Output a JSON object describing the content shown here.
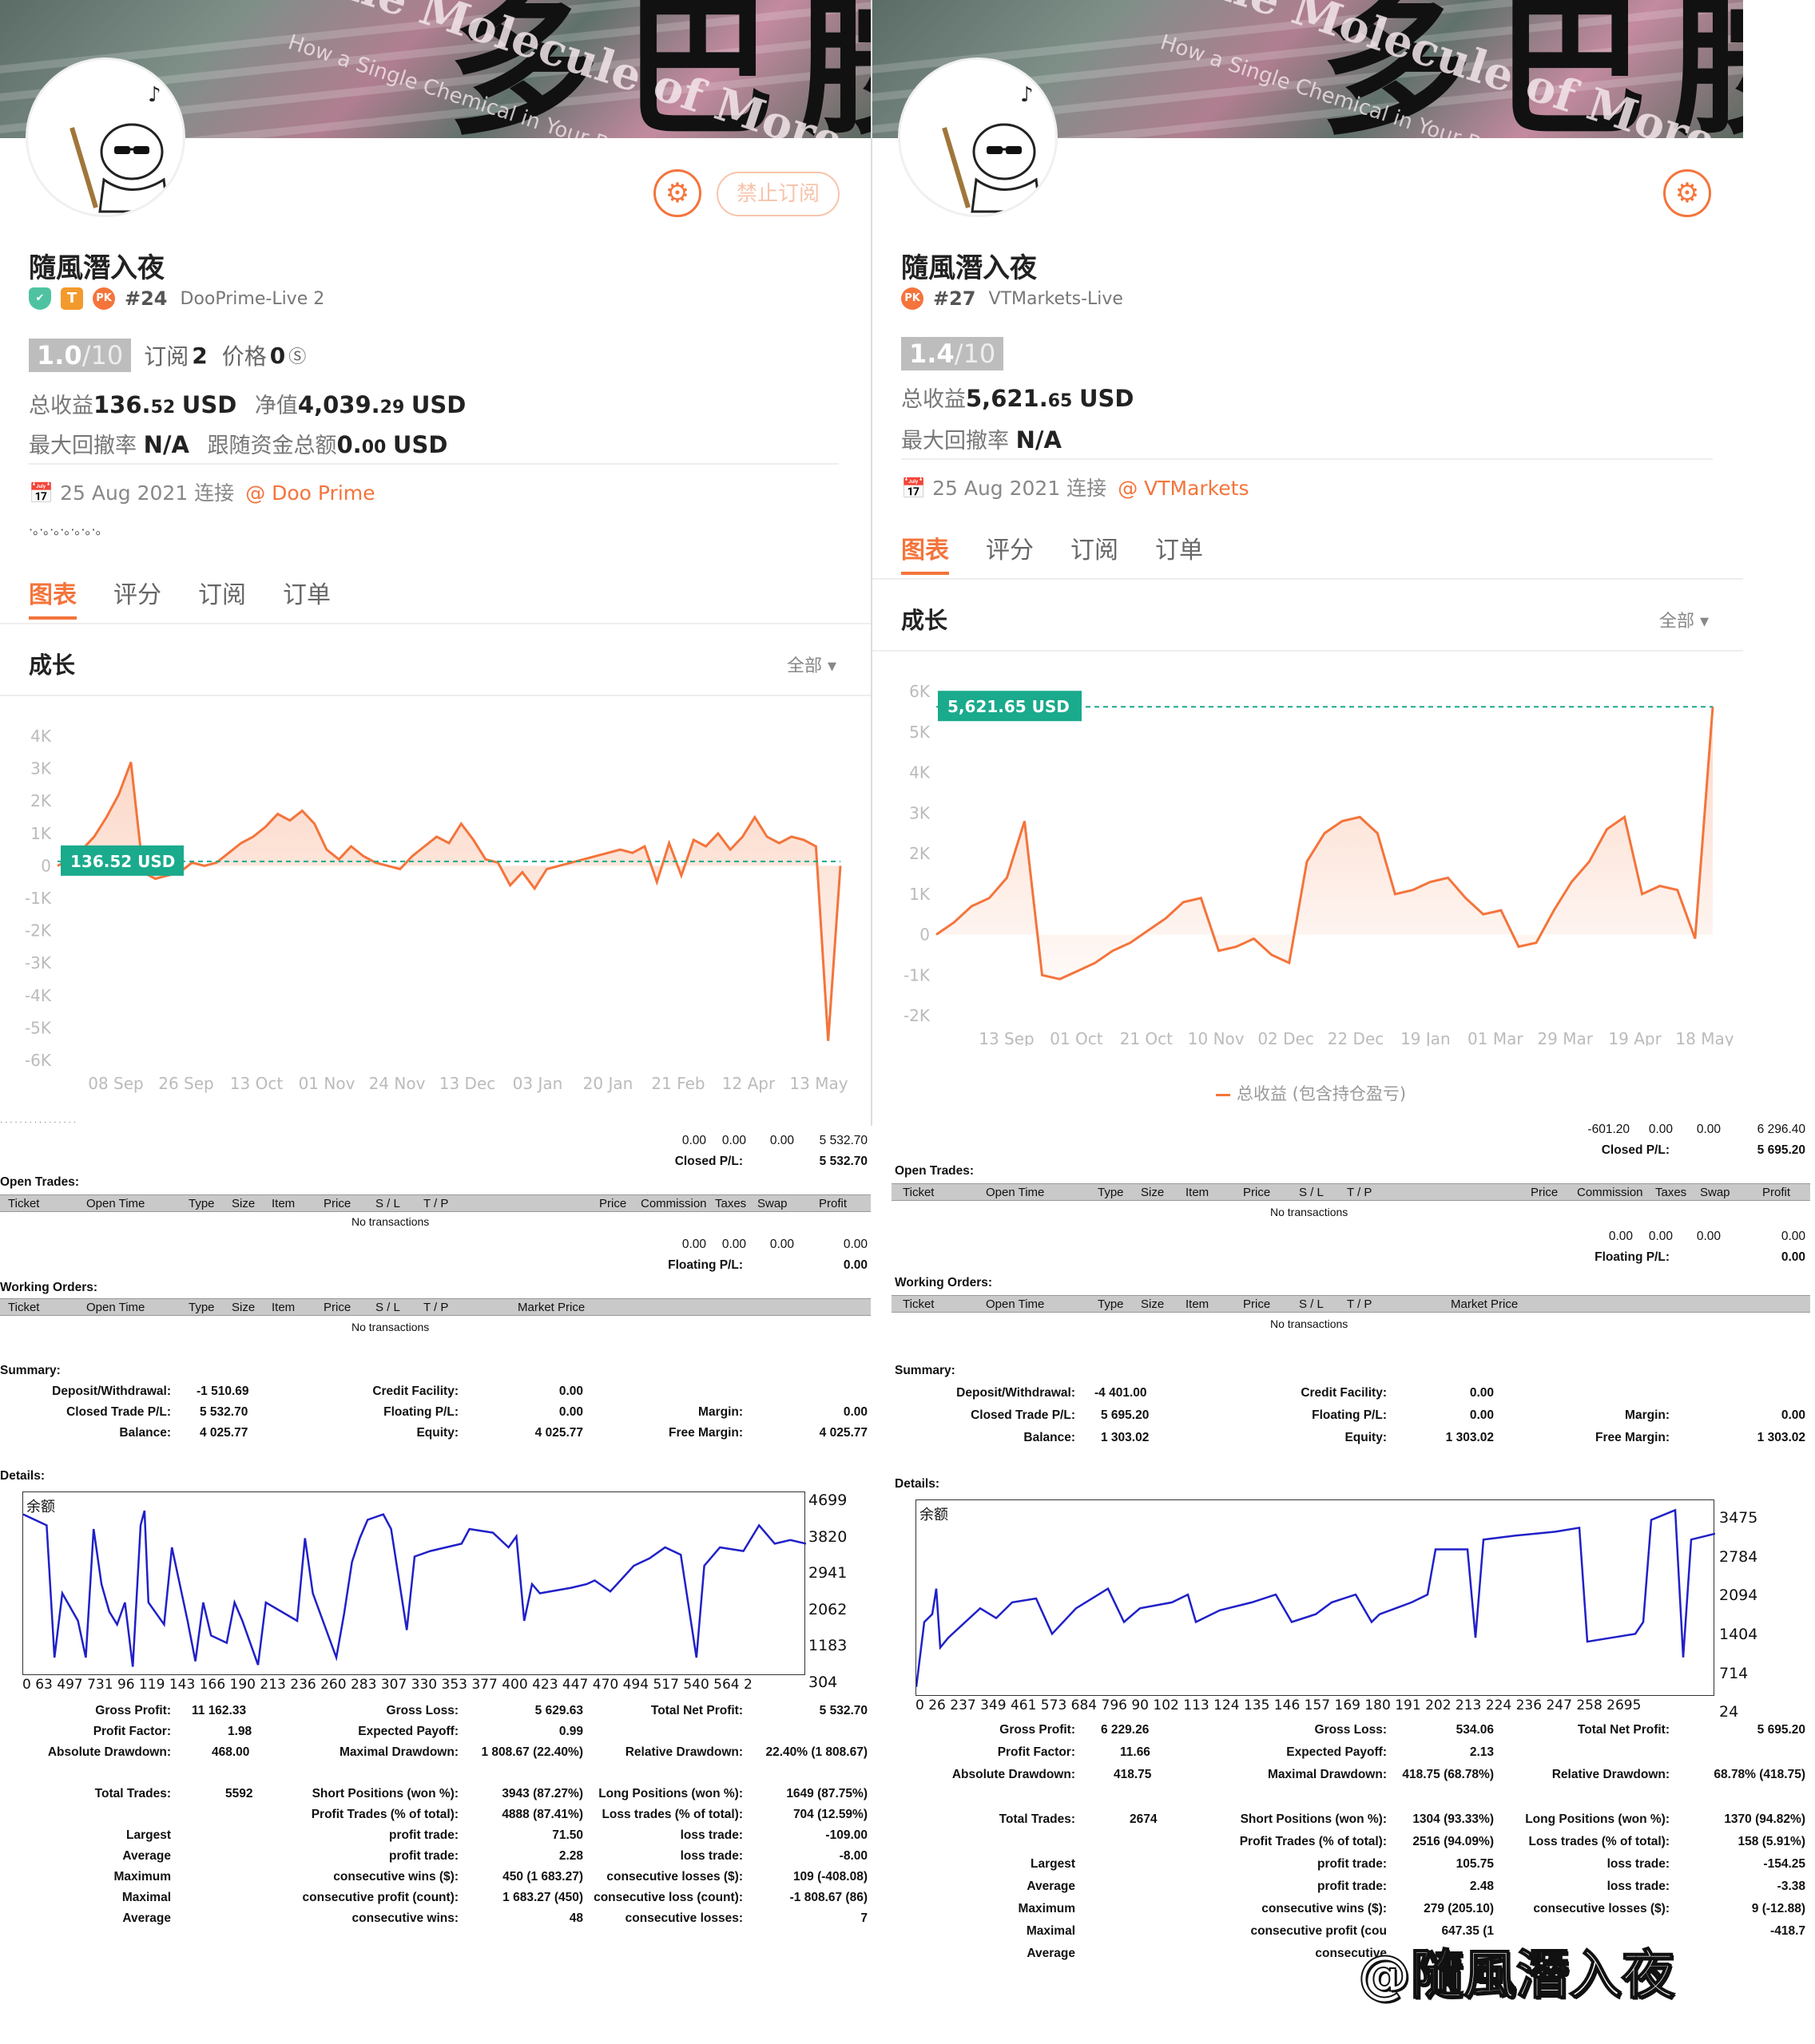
{
  "left": {
    "banner_text": "多巴胺",
    "banner_en": "The Molecule of More",
    "banner_en2": "How a Single Chemical in Your Brain",
    "stop_button": "禁止订阅",
    "name": "隨風潛入夜",
    "badge_t": "T",
    "badge_pk": "PK",
    "rank": "#24",
    "server": "DooPrime-Live 2",
    "score": "1.0",
    "score_max": "/10",
    "subs_label": "订阅",
    "subs": "2",
    "price_label": "价格",
    "price": "0",
    "profit_label": "总收益",
    "profit_int": "136.",
    "profit_dec": "52",
    "profit_unit": "USD",
    "equity_label": "净值",
    "equity_int": "4,039.",
    "equity_dec": "29",
    "equity_unit": "USD",
    "dd_label": "最大回撤率",
    "dd": "N/A",
    "follow_label": "跟随资金总额",
    "follow_int": "0.",
    "follow_dec": "00",
    "follow_unit": "USD",
    "date": "25 Aug 2021 连接",
    "broker": "@ Doo Prime",
    "dots": "·。·。·。·。·。·。·。",
    "tabs": [
      "图表",
      "评分",
      "订阅",
      "订单"
    ],
    "section": "成长",
    "filter": "全部 ▾"
  },
  "right": {
    "name": "隨風潛入夜",
    "badge_pk": "PK",
    "rank": "#27",
    "server": "VTMarkets-Live",
    "score": "1.4",
    "score_max": "/10",
    "profit_label": "总收益",
    "profit_int": "5,621.",
    "profit_dec": "65",
    "profit_unit": "USD",
    "dd_label": "最大回撤率",
    "dd": "N/A",
    "date": "25 Aug 2021 连接",
    "broker": "@ VTMarkets",
    "tabs": [
      "图表",
      "评分",
      "订阅",
      "订单"
    ],
    "section": "成长",
    "filter": "全部 ▾",
    "legend": "总收益 (包含持仓盈亏)"
  },
  "chart_data": [
    {
      "type": "area",
      "y_ticks": [
        "4K",
        "3K",
        "2K",
        "1K",
        "0",
        "-1K",
        "-2K",
        "-3K",
        "-4K",
        "-5K",
        "-6K"
      ],
      "x_ticks": [
        "08 Sep",
        "26 Sep",
        "13 Oct",
        "01 Nov",
        "24 Nov",
        "13 Dec",
        "03 Jan",
        "20 Jan",
        "21 Feb",
        "12 Apr",
        "13 May"
      ],
      "ylim": [
        -6000,
        4000
      ],
      "current_label": "136.52 USD",
      "current": 136.52,
      "series": [
        {
          "values": [
            0,
            200,
            500,
            900,
            1500,
            2200,
            3200,
            -200,
            -400,
            -300,
            -200,
            100,
            0,
            100,
            400,
            700,
            900,
            1200,
            1600,
            1400,
            1700,
            1300,
            500,
            200,
            600,
            300,
            100,
            0,
            -100,
            300,
            600,
            900,
            700,
            1300,
            800,
            200,
            100,
            -600,
            -200,
            -700,
            -100,
            0,
            100,
            200,
            300,
            400,
            500,
            400,
            600,
            -500,
            700,
            -300,
            800,
            600,
            1000,
            500,
            900,
            1500,
            900,
            700,
            900,
            800,
            600,
            -5400,
            0
          ]
        }
      ]
    },
    {
      "type": "area",
      "y_ticks": [
        "6K",
        "5K",
        "4K",
        "3K",
        "2K",
        "1K",
        "0",
        "-1K",
        "-2K"
      ],
      "x_ticks": [
        "13 Sep",
        "01 Oct",
        "21 Oct",
        "10 Nov",
        "02 Dec",
        "22 Dec",
        "19 Jan",
        "01 Mar",
        "29 Mar",
        "19 Apr",
        "18 May"
      ],
      "ylim": [
        -2000,
        6000
      ],
      "current_label": "5,621.65 USD",
      "current": 5621.65,
      "series": [
        {
          "name": "总收益 (包含持仓盈亏)",
          "values": [
            0,
            300,
            700,
            900,
            1400,
            2800,
            -1000,
            -1100,
            -900,
            -700,
            -400,
            -200,
            100,
            400,
            800,
            900,
            -400,
            -300,
            -100,
            -500,
            -700,
            1800,
            2500,
            2800,
            2900,
            2500,
            1000,
            1100,
            1300,
            1400,
            900,
            500,
            600,
            -300,
            -200,
            600,
            1300,
            1800,
            2600,
            2900,
            1000,
            1200,
            1100,
            -100,
            5621.65
          ]
        }
      ]
    }
  ],
  "reportL": {
    "top1": "· · · · · · · · · · · · · · · ·",
    "c1": "0.00",
    "c2": "0.00",
    "c3": "0.00",
    "c4": "5 532.70",
    "closed_label": "Closed P/L:",
    "closed": "5 532.70",
    "open_title": "Open Trades:",
    "hdr": [
      "Ticket",
      "Open Time",
      "Type",
      "Size",
      "Item",
      "Price",
      "S / L",
      "T / P",
      "Price",
      "Commission",
      "Taxes",
      "Swap",
      "Profit"
    ],
    "no_tx": "No transactions",
    "f1": "0.00",
    "f2": "0.00",
    "f3": "0.00",
    "f4": "0.00",
    "floating_label": "Floating P/L:",
    "floating": "0.00",
    "work_title": "Working Orders:",
    "whdr": [
      "Ticket",
      "Open Time",
      "Type",
      "Size",
      "Item",
      "Price",
      "S / L",
      "T / P",
      "Market Price"
    ],
    "no_tx2": "No transactions",
    "summary": "Summary:",
    "dep_l": "Deposit/Withdrawal:",
    "dep": "-1 510.69",
    "cf_l": "Credit Facility:",
    "cf": "0.00",
    "ctp_l": "Closed Trade P/L:",
    "ctp": "5 532.70",
    "fpl_l": "Floating P/L:",
    "fpl": "0.00",
    "mar_l": "Margin:",
    "mar": "0.00",
    "bal_l": "Balance:",
    "bal": "4 025.77",
    "eq_l": "Equity:",
    "eq": "4 025.77",
    "fm_l": "Free Margin:",
    "fm": "4 025.77",
    "details": "Details:",
    "mini_label": "余额",
    "mini_y": [
      "4699",
      "3820",
      "2941",
      "2062",
      "1183",
      "304"
    ],
    "mini_x": "0 63 497 731 96 119 143 166 190 213 236 260 283 307 330 353 377 400 423 447 470 494 517 540 564 2",
    "gp_l": "Gross Profit:",
    "gp": "11 162.33",
    "gl_l": "Gross Loss:",
    "gl": "5 629.63",
    "tnp_l": "Total Net Profit:",
    "tnp": "5 532.70",
    "pf_l": "Profit Factor:",
    "pf": "1.98",
    "ep_l": "Expected Payoff:",
    "ep": "0.99",
    "ad_l": "Absolute Drawdown:",
    "ad": "468.00",
    "md_l": "Maximal Drawdown:",
    "md": "1 808.67 (22.40%)",
    "rd_l": "Relative Drawdown:",
    "rd": "22.40% (1 808.67)",
    "tt_l": "Total Trades:",
    "tt": "5592",
    "sp_l": "Short Positions (won %):",
    "sp": "3943 (87.27%)",
    "lp_l": "Long Positions (won %):",
    "lp": "1649 (87.75%)",
    "ptp_l": "Profit Trades (% of total):",
    "ptp": "4888 (87.41%)",
    "ltp_l": "Loss trades (% of total):",
    "ltp": "704 (12.59%)",
    "largest": "Largest",
    "lpt_l": "profit trade:",
    "lpt": "71.50",
    "llt_l": "loss trade:",
    "llt": "-109.00",
    "average": "Average",
    "apt_l": "profit trade:",
    "apt": "2.28",
    "alt_l": "loss trade:",
    "alt": "-8.00",
    "maximum": "Maximum",
    "mcw_l": "consecutive wins ($):",
    "mcw": "450 (1 683.27)",
    "mcl_l": "consecutive losses ($):",
    "mcl": "109 (-408.08)",
    "maximal": "Maximal",
    "mcp_l": "consecutive profit (count):",
    "mcp": "1 683.27 (450)",
    "mclc_l": "consecutive loss (count):",
    "mclc": "-1 808.67 (86)",
    "average2": "Average",
    "acw_l": "consecutive wins:",
    "acw": "48",
    "acl_l": "consecutive losses:",
    "acl": "7"
  },
  "reportR": {
    "t1": "-601.20",
    "t2": "0.00",
    "t3": "0.00",
    "t4": "6 296.40",
    "closed_label": "Closed P/L:",
    "closed": "5 695.20",
    "open_title": "Open Trades:",
    "hdr": [
      "Ticket",
      "Open Time",
      "Type",
      "Size",
      "Item",
      "Price",
      "S / L",
      "T / P",
      "Price",
      "Commission",
      "Taxes",
      "Swap",
      "Profit"
    ],
    "no_tx": "No transactions",
    "f1": "0.00",
    "f2": "0.00",
    "f3": "0.00",
    "f4": "0.00",
    "floating_label": "Floating P/L:",
    "floating": "0.00",
    "work_title": "Working Orders:",
    "whdr": [
      "Ticket",
      "Open Time",
      "Type",
      "Size",
      "Item",
      "Price",
      "S / L",
      "T / P",
      "Market Price"
    ],
    "no_tx2": "No transactions",
    "summary": "Summary:",
    "dep_l": "Deposit/Withdrawal:",
    "dep": "-4 401.00",
    "cf_l": "Credit Facility:",
    "cf": "0.00",
    "ctp_l": "Closed Trade P/L:",
    "ctp": "5 695.20",
    "fpl_l": "Floating P/L:",
    "fpl": "0.00",
    "mar_l": "Margin:",
    "mar": "0.00",
    "bal_l": "Balance:",
    "bal": "1 303.02",
    "eq_l": "Equity:",
    "eq": "1 303.02",
    "fm_l": "Free Margin:",
    "fm": "1 303.02",
    "details": "Details:",
    "mini_label": "余额",
    "mini_y": [
      "3475",
      "2784",
      "2094",
      "1404",
      "714",
      "24"
    ],
    "mini_x": "0 26 237 349 461 573 684 796 90 102 113 124 135 146 157 169 180 191 202 213 224 236 247 258 2695",
    "gp_l": "Gross Profit:",
    "gp": "6 229.26",
    "gl_l": "Gross Loss:",
    "gl": "534.06",
    "tnp_l": "Total Net Profit:",
    "tnp": "5 695.20",
    "pf_l": "Profit Factor:",
    "pf": "11.66",
    "ep_l": "Expected Payoff:",
    "ep": "2.13",
    "ad_l": "Absolute Drawdown:",
    "ad": "418.75",
    "md_l": "Maximal Drawdown:",
    "md": "418.75 (68.78%)",
    "rd_l": "Relative Drawdown:",
    "rd": "68.78% (418.75)",
    "tt_l": "Total Trades:",
    "tt": "2674",
    "sp_l": "Short Positions (won %):",
    "sp": "1304 (93.33%)",
    "lp_l": "Long Positions (won %):",
    "lp": "1370 (94.82%)",
    "ptp_l": "Profit Trades (% of total):",
    "ptp": "2516 (94.09%)",
    "ltp_l": "Loss trades (% of total):",
    "ltp": "158 (5.91%)",
    "largest": "Largest",
    "lpt_l": "profit trade:",
    "lpt": "105.75",
    "llt_l": "loss trade:",
    "llt": "-154.25",
    "average": "Average",
    "apt_l": "profit trade:",
    "apt": "2.48",
    "alt_l": "loss trade:",
    "alt": "-3.38",
    "maximum": "Maximum",
    "mcw_l": "consecutive wins ($):",
    "mcw": "279 (205.10)",
    "mcl_l": "consecutive losses ($):",
    "mcl": "9 (-12.88)",
    "maximal": "Maximal",
    "mcp_l": "consecutive profit (cou",
    "mcp": "647.35 (1",
    "mclc": "-418.7",
    "average2": "Average",
    "acw_l": "consecutive"
  },
  "watermark": "@隨風潛入夜",
  "colors": {
    "accent": "#f4743b",
    "teal": "#1aaa8c",
    "mini_line": "#2020c8"
  }
}
